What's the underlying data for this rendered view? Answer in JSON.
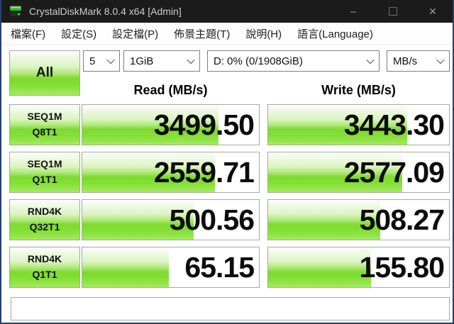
{
  "window": {
    "title": "CrystalDiskMark 8.0.4 x64 [Admin]",
    "controls": {
      "minimize": "–",
      "maximize": "",
      "close": "×"
    }
  },
  "menu": {
    "items": [
      "檔案(F)",
      "設定(S)",
      "設定檔(P)",
      "佈景主題(T)",
      "說明(H)",
      "語言(Language)"
    ]
  },
  "toolbar": {
    "all_button": "All",
    "test_count": "5",
    "test_size": "1GiB",
    "target_drive": "D: 0% (0/1908GiB)",
    "unit": "MB/s"
  },
  "columns": {
    "read": "Read (MB/s)",
    "write": "Write (MB/s)"
  },
  "results": {
    "rows": [
      {
        "label_line1": "SEQ1M",
        "label_line2": "Q8T1",
        "read": "3499.50",
        "write": "3443.30",
        "read_fill": 77,
        "write_fill": 77
      },
      {
        "label_line1": "SEQ1M",
        "label_line2": "Q1T1",
        "read": "2559.71",
        "write": "2577.09",
        "read_fill": 75,
        "write_fill": 74
      },
      {
        "label_line1": "RND4K",
        "label_line2": "Q32T1",
        "read": "500.56",
        "write": "508.27",
        "read_fill": 63,
        "write_fill": 62
      },
      {
        "label_line1": "RND4K",
        "label_line2": "Q1T1",
        "read": "65.15",
        "write": "155.80",
        "read_fill": 49,
        "write_fill": 57
      }
    ]
  },
  "status_message": "",
  "icons": {
    "app": "crystaldiskmark-disk-icon",
    "minimize": "minimize-icon",
    "maximize": "maximize-icon",
    "close": "close-icon",
    "combo_arrow": "chevron-down-icon"
  },
  "colors": {
    "titlebar_bg": "#1b1b1b",
    "titlebar_text": "#cfcfcf",
    "window_border": "#26406e",
    "bar_green_bright": "#7eda2f",
    "bar_green_pale": "#eef9e2",
    "bar_border": "#a8a8a8",
    "value_text": "#0c0c0c"
  }
}
